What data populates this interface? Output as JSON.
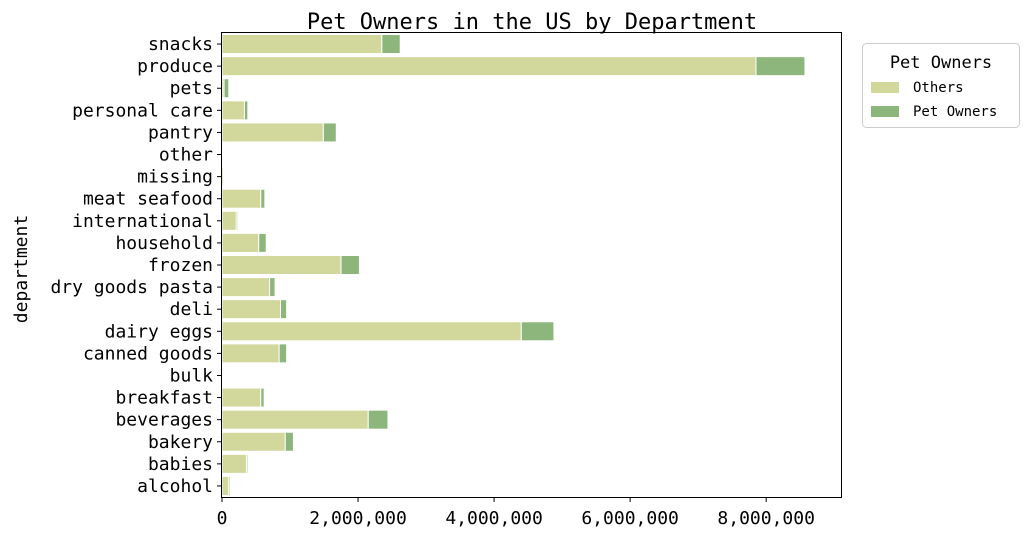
{
  "chart_data": {
    "type": "bar",
    "orientation": "horizontal",
    "stacked": true,
    "title": "Pet Owners in the US by Department",
    "xlabel": "",
    "ylabel": "department",
    "xlim": [
      0,
      9100000
    ],
    "xticks": [
      0,
      2000000,
      4000000,
      6000000,
      8000000
    ],
    "xtick_labels": [
      "0",
      "2,000,000",
      "4,000,000",
      "6,000,000",
      "8,000,000"
    ],
    "grid": false,
    "legend": {
      "title": "Pet Owners",
      "placement": "outside-top-right"
    },
    "categories": [
      "snacks",
      "produce",
      "pets",
      "personal care",
      "pantry",
      "other",
      "missing",
      "meat seafood",
      "international",
      "household",
      "frozen",
      "dry goods pasta",
      "deli",
      "dairy eggs",
      "canned goods",
      "bulk",
      "breakfast",
      "beverages",
      "bakery",
      "babies",
      "alcohol"
    ],
    "series": [
      {
        "name": "Others",
        "color": "#d2d79c",
        "values": [
          2350000,
          7850000,
          30000,
          330000,
          1490000,
          8000,
          25000,
          570000,
          210000,
          540000,
          1750000,
          700000,
          860000,
          4400000,
          840000,
          8000,
          570000,
          2150000,
          930000,
          360000,
          100000
        ]
      },
      {
        "name": "Pet Owners",
        "color": "#8db67c",
        "values": [
          270000,
          720000,
          70000,
          50000,
          190000,
          2000,
          5000,
          60000,
          20000,
          110000,
          270000,
          80000,
          90000,
          480000,
          110000,
          2000,
          50000,
          290000,
          120000,
          20000,
          20000
        ]
      }
    ]
  }
}
